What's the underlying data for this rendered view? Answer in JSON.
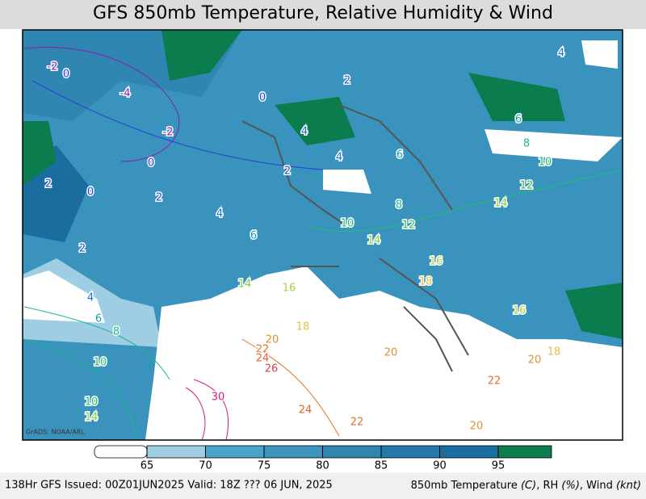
{
  "title": "GFS 850mb Temperature, Relative Humidity & Wind",
  "credit": "GrADS: NOAA/ARL",
  "colorbar": {
    "ticks": [
      65,
      70,
      75,
      80,
      85,
      90,
      95
    ],
    "colors": [
      "#ffffff",
      "#9fcde3",
      "#4aa3c8",
      "#3d95bd",
      "#2f87b1",
      "#2379a7",
      "#1a6d9f",
      "#0b7c4e"
    ]
  },
  "footer": {
    "left": "138Hr GFS Issued: 00Z01JUN2025 Valid: 18Z ??? 06 JUN, 2025",
    "right": [
      "850mb Temperature ",
      "(C)",
      ", RH ",
      "(%)",
      ", Wind ",
      "(knt)"
    ]
  },
  "contour_labels": [
    {
      "value": -2,
      "color": "#8a1fb0"
    },
    {
      "value": 0,
      "color": "#2840d8"
    },
    {
      "value": -4,
      "color": "#8a1fb0"
    },
    {
      "value": -2,
      "color": "#8a1fb0"
    },
    {
      "value": 0,
      "color": "#2840d8"
    },
    {
      "value": 0,
      "color": "#2840d8"
    },
    {
      "value": 0,
      "color": "#2840d8"
    },
    {
      "value": 2,
      "color": "#2850d8"
    },
    {
      "value": 2,
      "color": "#2850d8"
    },
    {
      "value": 2,
      "color": "#2850d8"
    },
    {
      "value": 2,
      "color": "#2850d8"
    },
    {
      "value": 2,
      "color": "#2850d8"
    },
    {
      "value": 4,
      "color": "#2070d0"
    },
    {
      "value": 4,
      "color": "#2070d0"
    },
    {
      "value": 4,
      "color": "#2070d0"
    },
    {
      "value": 4,
      "color": "#2070d0"
    },
    {
      "value": 6,
      "color": "#16a0b8"
    },
    {
      "value": 6,
      "color": "#16a0b8"
    },
    {
      "value": 6,
      "color": "#16a0b8"
    },
    {
      "value": 8,
      "color": "#18b890"
    },
    {
      "value": 8,
      "color": "#18b890"
    },
    {
      "value": 10,
      "color": "#20c070"
    },
    {
      "value": 10,
      "color": "#20c070"
    },
    {
      "value": 12,
      "color": "#30c050"
    },
    {
      "value": 12,
      "color": "#30c050"
    },
    {
      "value": 14,
      "color": "#80d040"
    },
    {
      "value": 14,
      "color": "#80d040"
    },
    {
      "value": 14,
      "color": "#80d040"
    },
    {
      "value": 16,
      "color": "#a8d040"
    },
    {
      "value": 16,
      "color": "#a8d040"
    },
    {
      "value": 16,
      "color": "#a8d040"
    },
    {
      "value": 18,
      "color": "#e0c040"
    },
    {
      "value": 18,
      "color": "#e0c040"
    },
    {
      "value": 18,
      "color": "#e0c040"
    },
    {
      "value": 20,
      "color": "#e09030"
    },
    {
      "value": 20,
      "color": "#e09030"
    },
    {
      "value": 20,
      "color": "#e09030"
    },
    {
      "value": 22,
      "color": "#e07030"
    },
    {
      "value": 24,
      "color": "#e06030"
    },
    {
      "value": 26,
      "color": "#e04040"
    },
    {
      "value": 30,
      "color": "#d81880"
    },
    {
      "value": 22,
      "color": "#e07030"
    },
    {
      "value": 22,
      "color": "#e07030"
    },
    {
      "value": 24,
      "color": "#e06030"
    },
    {
      "value": 20,
      "color": "#e09030"
    },
    {
      "value": 4,
      "color": "#2070d0"
    },
    {
      "value": 6,
      "color": "#16a0b8"
    },
    {
      "value": 8,
      "color": "#18b890"
    },
    {
      "value": 10,
      "color": "#20c070"
    },
    {
      "value": 10,
      "color": "#20c070"
    },
    {
      "value": 14,
      "color": "#80d040"
    }
  ]
}
